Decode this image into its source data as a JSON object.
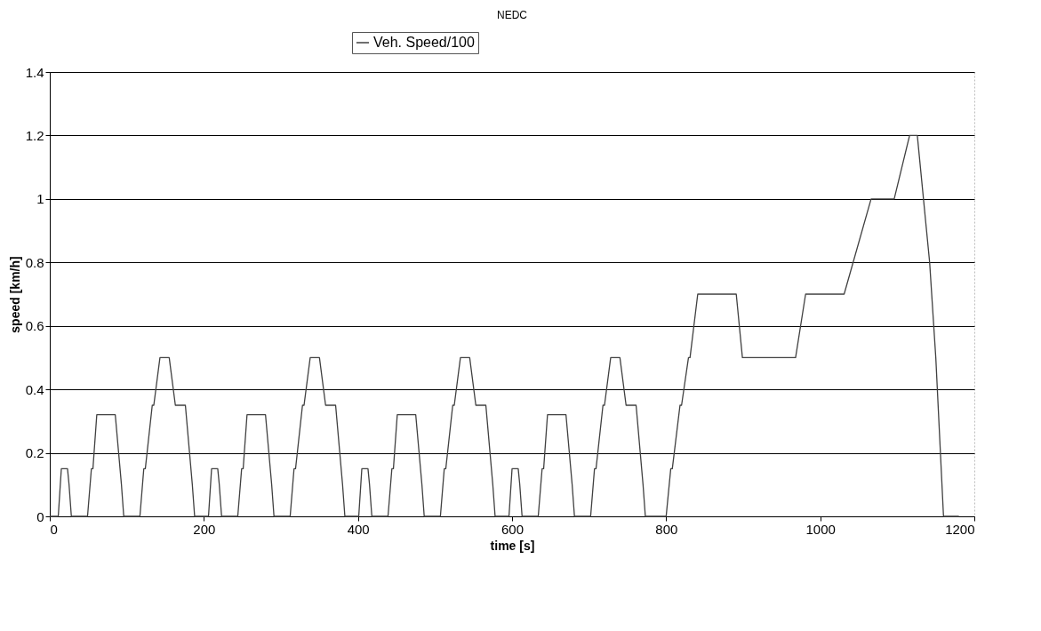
{
  "chart_data": {
    "type": "line",
    "title": "NEDC",
    "xlabel": "time [s]",
    "ylabel": "speed [km/h]",
    "x": [
      0,
      11,
      15,
      23,
      25,
      28,
      49,
      54,
      56,
      61,
      85,
      93,
      96,
      117,
      122,
      124,
      133,
      135,
      143,
      155,
      163,
      176,
      185,
      188,
      195,
      206,
      210,
      218,
      220,
      223,
      244,
      249,
      251,
      256,
      280,
      288,
      291,
      312,
      317,
      319,
      328,
      330,
      338,
      350,
      358,
      371,
      380,
      383,
      390,
      401,
      405,
      413,
      415,
      418,
      439,
      444,
      446,
      451,
      475,
      483,
      486,
      507,
      512,
      514,
      523,
      525,
      533,
      545,
      553,
      566,
      575,
      578,
      585,
      596,
      600,
      608,
      610,
      613,
      634,
      639,
      641,
      646,
      670,
      678,
      681,
      702,
      707,
      709,
      718,
      720,
      728,
      740,
      748,
      761,
      770,
      773,
      780,
      800,
      806,
      808,
      818,
      820,
      829,
      831,
      841,
      891,
      899,
      968,
      981,
      1031,
      1066,
      1096,
      1116,
      1126,
      1142,
      1150,
      1160,
      1180
    ],
    "series": [
      {
        "name": "Veh. Speed/100",
        "color": "#404040",
        "values": [
          0,
          0,
          0.15,
          0.15,
          0.1,
          0,
          0,
          0.15,
          0.15,
          0.32,
          0.32,
          0.1,
          0,
          0,
          0.15,
          0.15,
          0.35,
          0.35,
          0.5,
          0.5,
          0.35,
          0.35,
          0.1,
          0,
          0,
          0,
          0.15,
          0.15,
          0.1,
          0,
          0,
          0.15,
          0.15,
          0.32,
          0.32,
          0.1,
          0,
          0,
          0.15,
          0.15,
          0.35,
          0.35,
          0.5,
          0.5,
          0.35,
          0.35,
          0.1,
          0,
          0,
          0,
          0.15,
          0.15,
          0.1,
          0,
          0,
          0.15,
          0.15,
          0.32,
          0.32,
          0.1,
          0,
          0,
          0.15,
          0.15,
          0.35,
          0.35,
          0.5,
          0.5,
          0.35,
          0.35,
          0.1,
          0,
          0,
          0,
          0.15,
          0.15,
          0.1,
          0,
          0,
          0.15,
          0.15,
          0.32,
          0.32,
          0.1,
          0,
          0,
          0.15,
          0.15,
          0.35,
          0.35,
          0.5,
          0.5,
          0.35,
          0.35,
          0.1,
          0,
          0,
          0,
          0.15,
          0.15,
          0.35,
          0.35,
          0.5,
          0.5,
          0.7,
          0.7,
          0.5,
          0.5,
          0.7,
          0.7,
          1,
          1,
          1.2,
          1.2,
          0.8,
          0.5,
          0,
          0
        ]
      }
    ],
    "xlim": [
      0,
      1200
    ],
    "xticks": [
      0,
      200,
      400,
      600,
      800,
      1000,
      1200
    ],
    "ylim": [
      0,
      1.4
    ],
    "yticks": [
      0,
      0.2,
      0.4,
      0.6,
      0.8,
      1,
      1.2,
      1.4
    ],
    "grid": "y",
    "legend": "top",
    "marker": "none",
    "line_style": "solid"
  }
}
